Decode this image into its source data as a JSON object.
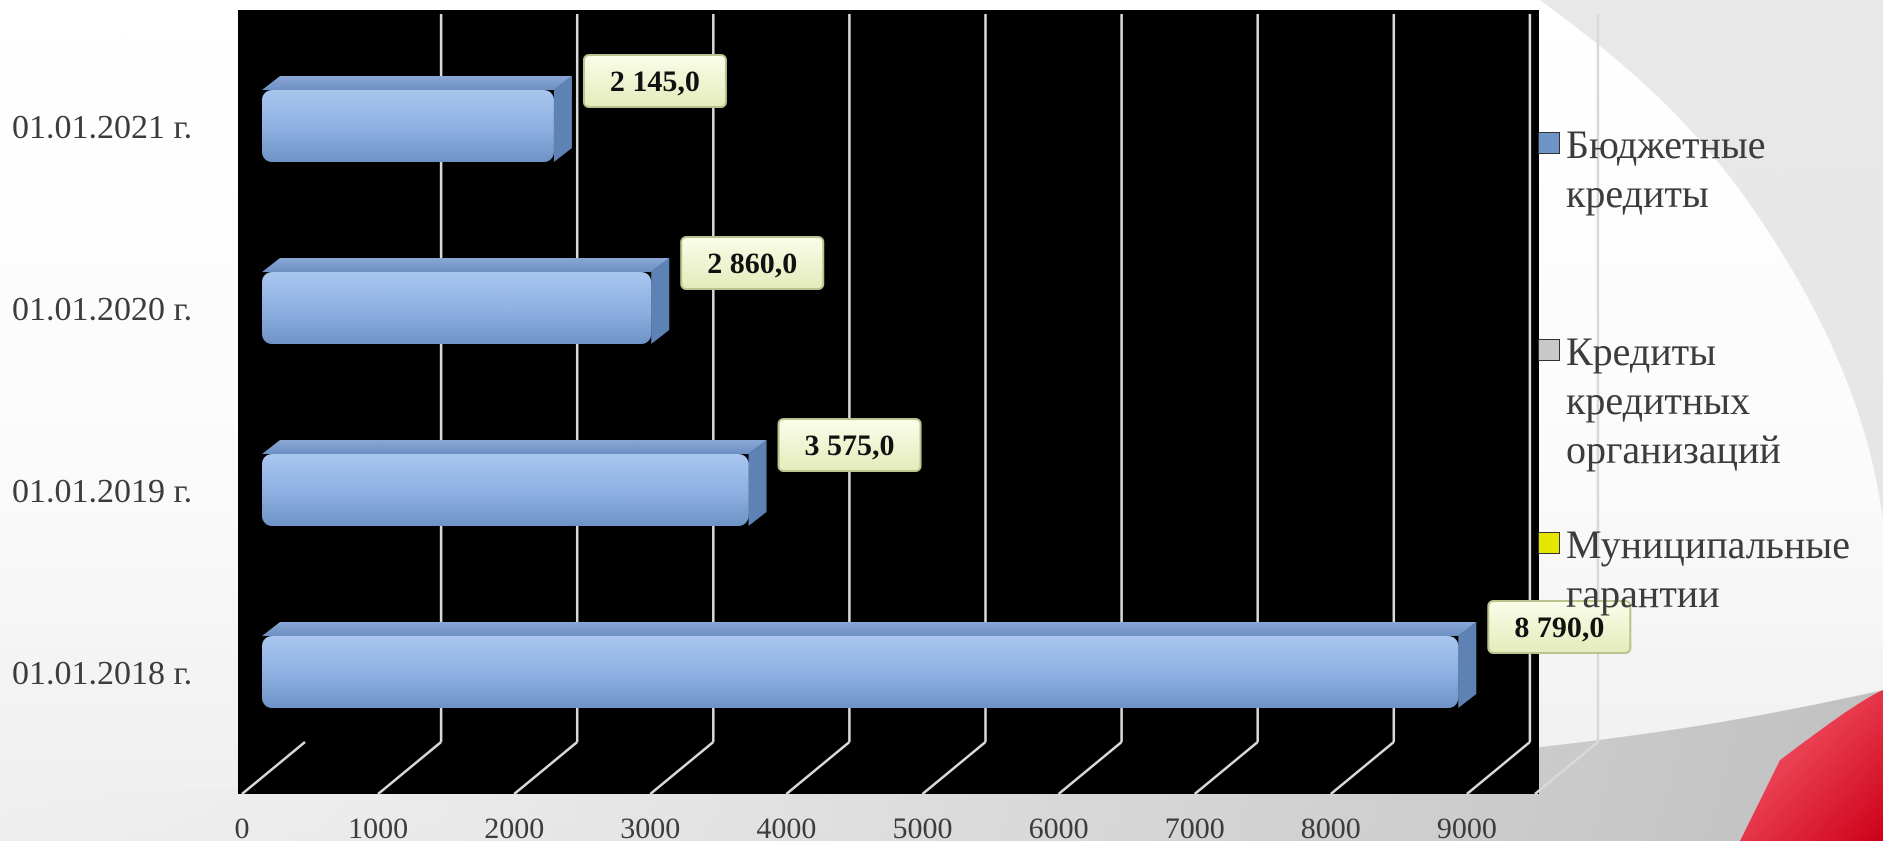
{
  "chart_data": {
    "type": "bar",
    "orientation": "horizontal",
    "categories": [
      "01.01.2021 г.",
      "01.01.2020 г.",
      "01.01.2019 г.",
      "01.01.2018 г."
    ],
    "series": [
      {
        "name": "Бюджетные кредиты",
        "values": [
          2145.0,
          2860.0,
          3575.0,
          8790.0
        ],
        "color": "#8fb1e3"
      },
      {
        "name": "Кредиты кредитных организаций",
        "values": [
          0,
          0,
          0,
          0
        ],
        "color": "#c8c8c8"
      },
      {
        "name": "Муниципальные гарантии",
        "values": [
          0,
          0,
          0,
          0
        ],
        "color": "#e6e600"
      }
    ],
    "data_labels": [
      "2 145,0",
      "2 860,0",
      "3 575,0",
      "8 790,0"
    ],
    "xticks": [
      "0",
      "1000",
      "2000",
      "3000",
      "4000",
      "5000",
      "6000",
      "7000",
      "8000",
      "9000"
    ],
    "xlim": [
      0,
      9500
    ],
    "grid": true,
    "legend_position": "right",
    "plot_background": "#000000",
    "gridline_color": "#d9d9d9",
    "label_box_color": "#f2f7d2"
  }
}
